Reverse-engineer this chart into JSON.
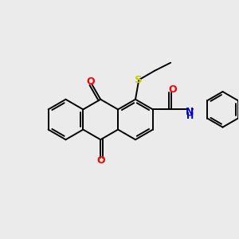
{
  "bg_color": "#ebebeb",
  "bond_color": "#000000",
  "bond_width": 1.4,
  "atom_colors": {
    "O": "#ff0000",
    "S": "#cccc00",
    "N": "#0000cd",
    "H": "#000000"
  },
  "figsize": [
    3.0,
    3.0
  ],
  "dpi": 100
}
